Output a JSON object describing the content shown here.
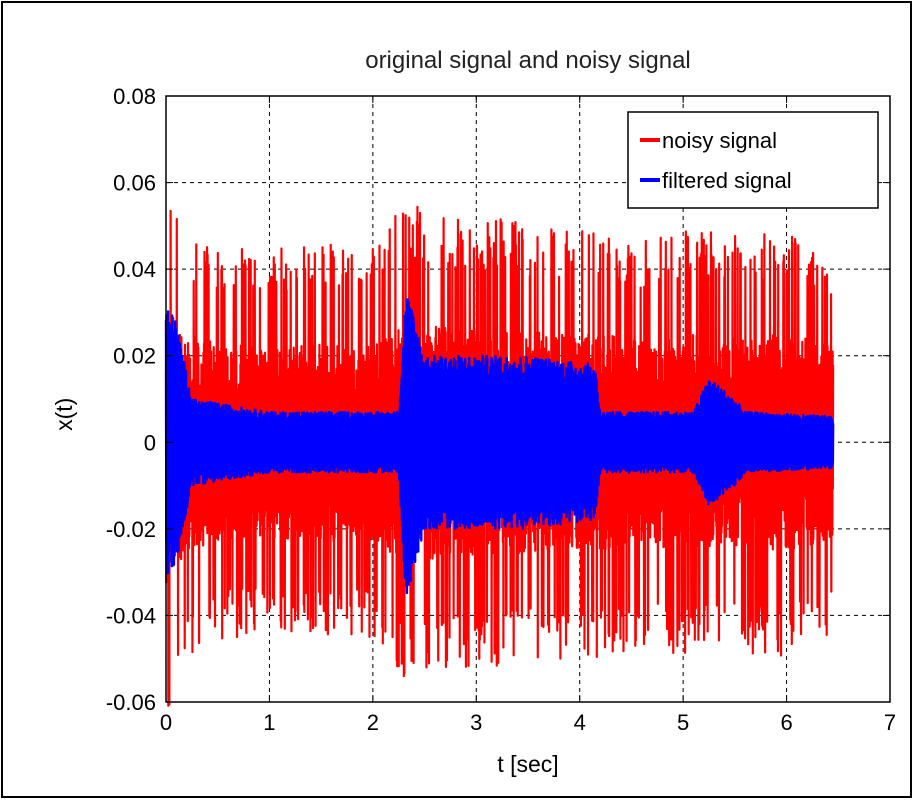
{
  "chart_data": {
    "type": "line",
    "title": "original signal and noisy signal",
    "xlabel": "t [sec]",
    "ylabel": "x(t)",
    "xlim": [
      0,
      7
    ],
    "ylim": [
      -0.06,
      0.08
    ],
    "xticks": [
      "0",
      "1",
      "2",
      "3",
      "4",
      "5",
      "6",
      "7"
    ],
    "yticks": [
      "-0.06",
      "-0.04",
      "-0.02",
      "0",
      "0.02",
      "0.04",
      "0.06",
      "0.08"
    ],
    "grid": true,
    "legend_position": "top-right",
    "duration": 6.45,
    "series": [
      {
        "name": "noisy signal",
        "color": "#ff0000",
        "envelope": [
          {
            "t": 0.0,
            "amp": 0.065
          },
          {
            "t": 0.2,
            "amp": 0.05
          },
          {
            "t": 0.6,
            "amp": 0.045
          },
          {
            "t": 1.0,
            "amp": 0.045
          },
          {
            "t": 1.5,
            "amp": 0.046
          },
          {
            "t": 2.0,
            "amp": 0.045
          },
          {
            "t": 2.3,
            "amp": 0.056
          },
          {
            "t": 2.8,
            "amp": 0.052
          },
          {
            "t": 3.3,
            "amp": 0.052
          },
          {
            "t": 3.8,
            "amp": 0.05
          },
          {
            "t": 4.2,
            "amp": 0.05
          },
          {
            "t": 4.6,
            "amp": 0.047
          },
          {
            "t": 5.0,
            "amp": 0.05
          },
          {
            "t": 5.4,
            "amp": 0.048
          },
          {
            "t": 6.0,
            "amp": 0.05
          },
          {
            "t": 6.45,
            "amp": 0.045
          }
        ]
      },
      {
        "name": "filtered signal",
        "color": "#0000ff",
        "envelope": [
          {
            "t": 0.0,
            "amp": 0.032
          },
          {
            "t": 0.1,
            "amp": 0.028
          },
          {
            "t": 0.25,
            "amp": 0.01
          },
          {
            "t": 1.0,
            "amp": 0.007
          },
          {
            "t": 2.0,
            "amp": 0.007
          },
          {
            "t": 2.25,
            "amp": 0.007
          },
          {
            "t": 2.32,
            "amp": 0.036
          },
          {
            "t": 2.5,
            "amp": 0.02
          },
          {
            "t": 3.5,
            "amp": 0.02
          },
          {
            "t": 4.15,
            "amp": 0.018
          },
          {
            "t": 4.2,
            "amp": 0.007
          },
          {
            "t": 5.1,
            "amp": 0.007
          },
          {
            "t": 5.25,
            "amp": 0.015
          },
          {
            "t": 5.5,
            "amp": 0.01
          },
          {
            "t": 5.6,
            "amp": 0.007
          },
          {
            "t": 6.45,
            "amp": 0.006
          }
        ]
      }
    ]
  }
}
